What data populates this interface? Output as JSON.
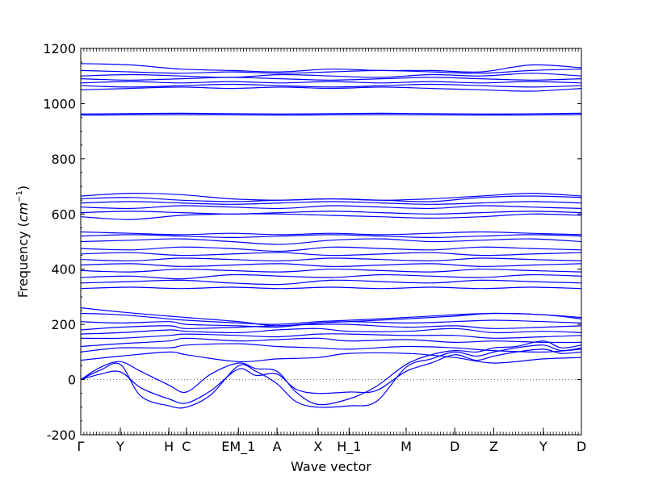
{
  "chart_data": {
    "type": "line",
    "title": "",
    "xlabel": "Wave vector",
    "ylabel": "Frequency (cm⁻¹)",
    "ylabel_parts": {
      "prefix": "Frequency (",
      "unit": "cm",
      "exp": "−1",
      "suffix": ")"
    },
    "ylim": [
      -200,
      1200
    ],
    "y_ticks": [
      -200,
      0,
      200,
      400,
      600,
      800,
      1000,
      1200
    ],
    "grid": false,
    "zero_line": {
      "y": 0,
      "style": "dotted"
    },
    "line_color": "#0000ff",
    "x_ticks": [
      {
        "label": "Γ",
        "x": 0.0
      },
      {
        "label": "Y",
        "x": 0.079
      },
      {
        "label": "H",
        "x": 0.176
      },
      {
        "label": "C",
        "x": 0.211
      },
      {
        "label": "EM_1",
        "x": 0.315
      },
      {
        "label": "A",
        "x": 0.392
      },
      {
        "label": "X",
        "x": 0.474
      },
      {
        "label": "H_1",
        "x": 0.536
      },
      {
        "label": "M",
        "x": 0.65
      },
      {
        "label": "D",
        "x": 0.747
      },
      {
        "label": "Z",
        "x": 0.825
      },
      {
        "label": "Y",
        "x": 0.924
      },
      {
        "label": "D",
        "x": 1.0
      }
    ],
    "bands": [
      {
        "name": "",
        "x": [
          0,
          0.04,
          0.079,
          0.12,
          0.176,
          0.211,
          0.26,
          0.315,
          0.35,
          0.392,
          0.43,
          0.474,
          0.536,
          0.59,
          0.65,
          0.7,
          0.747,
          0.79,
          0.825,
          0.87,
          0.924,
          0.96,
          1.0
        ],
        "y": [
          0,
          20,
          28,
          -30,
          -70,
          -85,
          -40,
          38,
          15,
          20,
          -35,
          -50,
          -45,
          -40,
          30,
          60,
          90,
          70,
          85,
          100,
          110,
          95,
          100
        ]
      },
      {
        "name": "",
        "x": [
          0,
          0.04,
          0.079,
          0.12,
          0.176,
          0.211,
          0.26,
          0.315,
          0.35,
          0.392,
          0.43,
          0.474,
          0.536,
          0.59,
          0.65,
          0.7,
          0.747,
          0.79,
          0.825,
          0.87,
          0.924,
          0.96,
          1.0
        ],
        "y": [
          0,
          35,
          55,
          -60,
          -95,
          -100,
          -55,
          50,
          30,
          -15,
          -80,
          -100,
          -95,
          -80,
          45,
          75,
          100,
          85,
          100,
          115,
          125,
          105,
          115
        ]
      },
      {
        "name": "",
        "x": [
          0,
          0.04,
          0.079,
          0.12,
          0.176,
          0.211,
          0.26,
          0.315,
          0.35,
          0.392,
          0.43,
          0.474,
          0.536,
          0.59,
          0.65,
          0.7,
          0.747,
          0.79,
          0.825,
          0.87,
          0.924,
          0.96,
          1.0
        ],
        "y": [
          0,
          45,
          65,
          30,
          -20,
          -45,
          20,
          60,
          40,
          30,
          -45,
          -90,
          -70,
          -25,
          55,
          90,
          105,
          100,
          115,
          120,
          140,
          115,
          125
        ]
      },
      {
        "name": "",
        "x": [
          0,
          0.079,
          0.176,
          0.211,
          0.315,
          0.392,
          0.474,
          0.536,
          0.65,
          0.747,
          0.825,
          0.924,
          1.0
        ],
        "y": [
          70,
          85,
          100,
          90,
          65,
          75,
          80,
          95,
          95,
          80,
          60,
          75,
          80
        ]
      },
      {
        "name": "",
        "x": [
          0,
          0.079,
          0.176,
          0.211,
          0.315,
          0.392,
          0.474,
          0.536,
          0.65,
          0.747,
          0.825,
          0.924,
          1.0
        ],
        "y": [
          100,
          115,
          115,
          125,
          130,
          120,
          115,
          110,
          120,
          115,
          105,
          100,
          110
        ]
      },
      {
        "name": "",
        "x": [
          0,
          0.079,
          0.176,
          0.211,
          0.315,
          0.392,
          0.474,
          0.536,
          0.65,
          0.747,
          0.825,
          0.924,
          1.0
        ],
        "y": [
          120,
          130,
          140,
          150,
          140,
          145,
          150,
          140,
          145,
          135,
          140,
          135,
          135
        ]
      },
      {
        "name": "",
        "x": [
          0,
          0.079,
          0.176,
          0.211,
          0.315,
          0.392,
          0.474,
          0.536,
          0.65,
          0.747,
          0.825,
          0.924,
          1.0
        ],
        "y": [
          150,
          150,
          160,
          165,
          160,
          155,
          165,
          165,
          160,
          160,
          150,
          155,
          160
        ]
      },
      {
        "name": "",
        "x": [
          0,
          0.079,
          0.176,
          0.211,
          0.315,
          0.392,
          0.474,
          0.536,
          0.65,
          0.747,
          0.825,
          0.924,
          1.0
        ],
        "y": [
          165,
          170,
          180,
          175,
          170,
          180,
          185,
          175,
          175,
          185,
          170,
          175,
          170
        ]
      },
      {
        "name": "",
        "x": [
          0,
          0.079,
          0.176,
          0.211,
          0.315,
          0.392,
          0.474,
          0.536,
          0.65,
          0.747,
          0.825,
          0.924,
          1.0
        ],
        "y": [
          180,
          190,
          195,
          185,
          190,
          195,
          200,
          200,
          190,
          195,
          185,
          190,
          195
        ]
      },
      {
        "name": "",
        "x": [
          0,
          0.079,
          0.176,
          0.211,
          0.315,
          0.392,
          0.474,
          0.536,
          0.65,
          0.747,
          0.825,
          0.924,
          1.0
        ],
        "y": [
          210,
          205,
          210,
          200,
          195,
          190,
          205,
          210,
          205,
          210,
          215,
          210,
          205
        ]
      },
      {
        "name": "",
        "x": [
          0,
          0.079,
          0.176,
          0.211,
          0.315,
          0.392,
          0.474,
          0.536,
          0.65,
          0.747,
          0.825,
          0.924,
          1.0
        ],
        "y": [
          240,
          235,
          220,
          215,
          205,
          200,
          210,
          215,
          225,
          235,
          240,
          235,
          225
        ]
      },
      {
        "name": "",
        "x": [
          0,
          0.079,
          0.176,
          0.211,
          0.315,
          0.392,
          0.474,
          0.536,
          0.65,
          0.747,
          0.825,
          0.924,
          1.0
        ],
        "y": [
          260,
          245,
          230,
          225,
          210,
          195,
          205,
          210,
          220,
          230,
          240,
          235,
          220
        ]
      },
      {
        "name": "",
        "x": [
          0,
          0.1,
          0.2,
          0.3,
          0.4,
          0.5,
          0.6,
          0.7,
          0.8,
          0.9,
          1.0
        ],
        "y": [
          330,
          335,
          330,
          335,
          330,
          335,
          330,
          335,
          330,
          335,
          330
        ]
      },
      {
        "name": "",
        "x": [
          0,
          0.1,
          0.2,
          0.3,
          0.4,
          0.5,
          0.6,
          0.7,
          0.8,
          0.9,
          1.0
        ],
        "y": [
          350,
          355,
          360,
          350,
          345,
          360,
          355,
          350,
          360,
          355,
          350
        ]
      },
      {
        "name": "",
        "x": [
          0,
          0.1,
          0.2,
          0.3,
          0.4,
          0.5,
          0.6,
          0.7,
          0.8,
          0.9,
          1.0
        ],
        "y": [
          370,
          375,
          365,
          380,
          375,
          370,
          380,
          375,
          370,
          380,
          375
        ]
      },
      {
        "name": "",
        "x": [
          0,
          0.1,
          0.2,
          0.3,
          0.4,
          0.5,
          0.6,
          0.7,
          0.8,
          0.9,
          1.0
        ],
        "y": [
          395,
          390,
          400,
          395,
          390,
          400,
          395,
          390,
          400,
          395,
          390
        ]
      },
      {
        "name": "",
        "x": [
          0,
          0.1,
          0.2,
          0.3,
          0.4,
          0.5,
          0.6,
          0.7,
          0.8,
          0.9,
          1.0
        ],
        "y": [
          415,
          420,
          410,
          415,
          420,
          410,
          415,
          420,
          410,
          415,
          420
        ]
      },
      {
        "name": "",
        "x": [
          0,
          0.1,
          0.2,
          0.3,
          0.4,
          0.5,
          0.6,
          0.7,
          0.8,
          0.9,
          1.0
        ],
        "y": [
          435,
          430,
          440,
          435,
          430,
          440,
          435,
          430,
          440,
          435,
          430
        ]
      },
      {
        "name": "",
        "x": [
          0,
          0.1,
          0.2,
          0.3,
          0.4,
          0.5,
          0.6,
          0.7,
          0.8,
          0.9,
          1.0
        ],
        "y": [
          455,
          460,
          450,
          455,
          460,
          450,
          455,
          460,
          450,
          455,
          460
        ]
      },
      {
        "name": "",
        "x": [
          0,
          0.1,
          0.2,
          0.3,
          0.4,
          0.5,
          0.6,
          0.7,
          0.8,
          0.9,
          1.0
        ],
        "y": [
          475,
          470,
          480,
          475,
          465,
          480,
          475,
          470,
          480,
          475,
          470
        ]
      },
      {
        "name": "",
        "x": [
          0,
          0.1,
          0.2,
          0.3,
          0.4,
          0.5,
          0.6,
          0.7,
          0.8,
          0.9,
          1.0
        ],
        "y": [
          500,
          505,
          510,
          500,
          490,
          505,
          510,
          500,
          505,
          510,
          500
        ]
      },
      {
        "name": "",
        "x": [
          0,
          0.1,
          0.2,
          0.3,
          0.4,
          0.5,
          0.6,
          0.7,
          0.8,
          0.9,
          1.0
        ],
        "y": [
          520,
          525,
          520,
          515,
          520,
          525,
          520,
          515,
          520,
          525,
          520
        ]
      },
      {
        "name": "",
        "x": [
          0,
          0.1,
          0.2,
          0.3,
          0.4,
          0.5,
          0.6,
          0.7,
          0.8,
          0.9,
          1.0
        ],
        "y": [
          535,
          530,
          525,
          530,
          525,
          530,
          525,
          530,
          535,
          530,
          525
        ]
      },
      {
        "name": "",
        "x": [
          0,
          0.1,
          0.2,
          0.3,
          0.4,
          0.5,
          0.6,
          0.7,
          0.8,
          0.9,
          1.0
        ],
        "y": [
          590,
          580,
          595,
          600,
          600,
          595,
          590,
          585,
          590,
          600,
          595
        ]
      },
      {
        "name": "",
        "x": [
          0,
          0.1,
          0.2,
          0.3,
          0.4,
          0.5,
          0.6,
          0.7,
          0.8,
          0.9,
          1.0
        ],
        "y": [
          605,
          610,
          605,
          600,
          605,
          610,
          605,
          600,
          605,
          610,
          605
        ]
      },
      {
        "name": "",
        "x": [
          0,
          0.1,
          0.2,
          0.3,
          0.4,
          0.5,
          0.6,
          0.7,
          0.8,
          0.9,
          1.0
        ],
        "y": [
          625,
          620,
          630,
          625,
          620,
          630,
          625,
          620,
          630,
          625,
          620
        ]
      },
      {
        "name": "",
        "x": [
          0,
          0.1,
          0.2,
          0.3,
          0.4,
          0.5,
          0.6,
          0.7,
          0.8,
          0.9,
          1.0
        ],
        "y": [
          640,
          645,
          640,
          635,
          640,
          645,
          640,
          635,
          640,
          645,
          640
        ]
      },
      {
        "name": "",
        "x": [
          0,
          0.1,
          0.2,
          0.3,
          0.4,
          0.5,
          0.6,
          0.7,
          0.8,
          0.9,
          1.0
        ],
        "y": [
          655,
          660,
          650,
          645,
          650,
          655,
          650,
          645,
          660,
          665,
          660
        ]
      },
      {
        "name": "",
        "x": [
          0,
          0.1,
          0.2,
          0.3,
          0.4,
          0.5,
          0.6,
          0.7,
          0.8,
          0.9,
          1.0
        ],
        "y": [
          665,
          675,
          670,
          655,
          650,
          655,
          650,
          655,
          665,
          675,
          665
        ]
      },
      {
        "name": "",
        "x": [
          0,
          0.2,
          0.4,
          0.6,
          0.8,
          1.0
        ],
        "y": [
          958,
          960,
          958,
          960,
          958,
          960
        ]
      },
      {
        "name": "",
        "x": [
          0,
          0.2,
          0.4,
          0.6,
          0.8,
          1.0
        ],
        "y": [
          962,
          965,
          962,
          965,
          962,
          965
        ]
      },
      {
        "name": "",
        "x": [
          0,
          0.1,
          0.2,
          0.3,
          0.4,
          0.5,
          0.6,
          0.7,
          0.8,
          0.9,
          1.0
        ],
        "y": [
          1050,
          1055,
          1060,
          1055,
          1060,
          1055,
          1060,
          1055,
          1050,
          1045,
          1055
        ]
      },
      {
        "name": "",
        "x": [
          0,
          0.1,
          0.2,
          0.3,
          0.4,
          0.5,
          0.6,
          0.7,
          0.8,
          0.9,
          1.0
        ],
        "y": [
          1065,
          1060,
          1065,
          1070,
          1065,
          1060,
          1065,
          1070,
          1065,
          1060,
          1065
        ]
      },
      {
        "name": "",
        "x": [
          0,
          0.1,
          0.2,
          0.3,
          0.4,
          0.5,
          0.6,
          0.7,
          0.8,
          0.9,
          1.0
        ],
        "y": [
          1075,
          1080,
          1075,
          1080,
          1075,
          1080,
          1075,
          1080,
          1075,
          1080,
          1075
        ]
      },
      {
        "name": "",
        "x": [
          0,
          0.1,
          0.2,
          0.3,
          0.4,
          0.5,
          0.6,
          0.7,
          0.8,
          0.9,
          1.0
        ],
        "y": [
          1090,
          1085,
          1090,
          1095,
          1090,
          1085,
          1090,
          1095,
          1090,
          1085,
          1090
        ]
      },
      {
        "name": "",
        "x": [
          0,
          0.1,
          0.2,
          0.3,
          0.4,
          0.5,
          0.6,
          0.7,
          0.8,
          0.9,
          1.0
        ],
        "y": [
          1100,
          1105,
          1100,
          1095,
          1105,
          1100,
          1095,
          1105,
          1100,
          1110,
          1100
        ]
      },
      {
        "name": "",
        "x": [
          0,
          0.1,
          0.2,
          0.3,
          0.4,
          0.5,
          0.6,
          0.7,
          0.8,
          0.9,
          1.0
        ],
        "y": [
          1120,
          1115,
          1110,
          1115,
          1110,
          1115,
          1120,
          1115,
          1110,
          1120,
          1125
        ]
      },
      {
        "name": "",
        "x": [
          0,
          0.1,
          0.2,
          0.3,
          0.4,
          0.5,
          0.6,
          0.7,
          0.8,
          0.9,
          1.0
        ],
        "y": [
          1145,
          1140,
          1125,
          1120,
          1115,
          1125,
          1120,
          1120,
          1115,
          1140,
          1130
        ]
      }
    ]
  }
}
